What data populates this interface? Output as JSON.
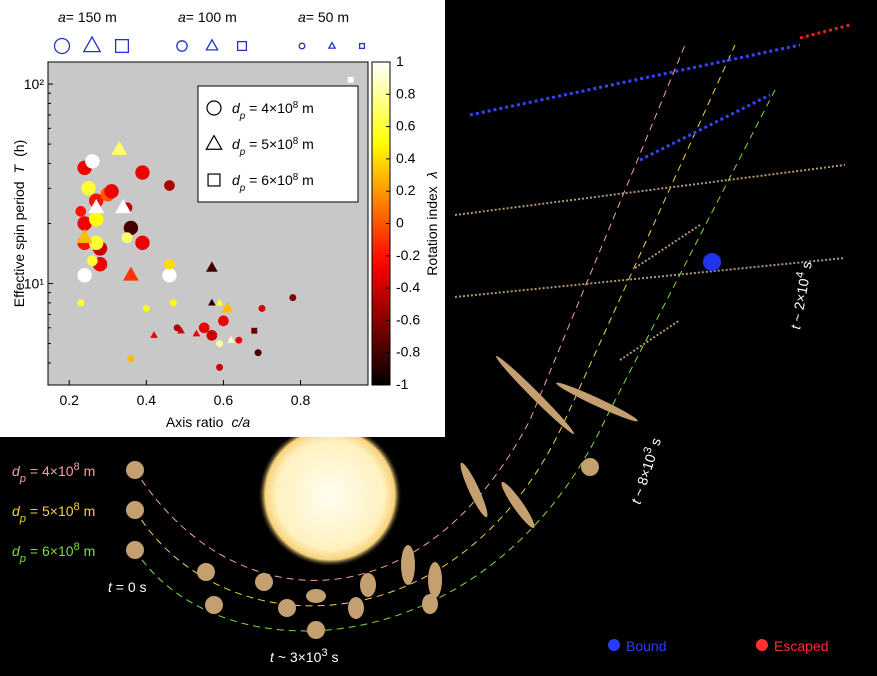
{
  "chart_data": {
    "type": "scatter",
    "x_label": "Axis ratio",
    "x_label_symbol": "c/a",
    "y_label": "Effective spin period",
    "y_label_symbol": "T",
    "y_label_unit": "(h)",
    "xlim": [
      0.145,
      0.975
    ],
    "xticks": [
      0.2,
      0.4,
      0.6,
      0.8
    ],
    "ylim": [
      3.1,
      129
    ],
    "y_log": true,
    "yticks": [
      {
        "value": 10,
        "label": "10¹"
      },
      {
        "value": 100,
        "label": "10²"
      }
    ],
    "grid": false,
    "background": "#c8c8c8",
    "colorbar": {
      "label": "Rotation index",
      "symbol": "λ",
      "lim": [
        -1,
        1
      ],
      "ticks": [
        1,
        0.8,
        0.6,
        0.4,
        0.2,
        0,
        -0.2,
        -0.4,
        -0.6,
        -0.8,
        -1
      ]
    },
    "size_legend": [
      {
        "symbol": "a",
        "text": "= 150 m",
        "value": 150
      },
      {
        "symbol": "a",
        "text": "= 100 m",
        "value": 100
      },
      {
        "symbol": "a",
        "text": "= 50 m",
        "value": 50
      }
    ],
    "size_legend_color": "#2233cc",
    "legend": "upper right",
    "series": [
      {
        "name": {
          "symbol": "d",
          "subscript": "p",
          "text": " = 4×10",
          "superscript": "8",
          "unit": " m"
        },
        "marker": "circle",
        "x": [
          0.24,
          0.26,
          0.25,
          0.27,
          0.3,
          0.31,
          0.24,
          0.27,
          0.24,
          0.28,
          0.27,
          0.28,
          0.24,
          0.39,
          0.36,
          0.39,
          0.46,
          0.35,
          0.46,
          0.23,
          0.26,
          0.35,
          0.57,
          0.55,
          0.46,
          0.6,
          0.23,
          0.47,
          0.59,
          0.69,
          0.7,
          0.78,
          0.4,
          0.36,
          0.59,
          0.64,
          0.48
        ],
        "values": [
          38,
          41,
          30,
          26,
          28,
          29,
          20,
          21,
          16,
          15,
          16,
          12.5,
          11,
          36,
          19,
          16,
          11,
          24,
          31,
          23,
          13,
          17,
          5.5,
          6,
          12.5,
          6.5,
          8,
          8,
          3.8,
          4.5,
          7.5,
          8.5,
          7.5,
          4.2,
          5,
          5.2,
          6
        ],
        "lambda": [
          -0.3,
          1,
          0.6,
          -0.2,
          0,
          -0.3,
          -0.3,
          0.5,
          -0.2,
          -0.4,
          0.6,
          -0.3,
          1,
          -0.3,
          -0.8,
          -0.3,
          1,
          -0.4,
          -0.5,
          -0.2,
          0.6,
          0.7,
          -0.4,
          -0.3,
          0.4,
          -0.3,
          0.6,
          0.5,
          -0.4,
          -0.8,
          -0.4,
          -0.6,
          0.5,
          0.3,
          0.8,
          -0.3,
          -0.5
        ],
        "a": [
          150,
          150,
          150,
          150,
          150,
          150,
          150,
          150,
          150,
          150,
          150,
          150,
          150,
          150,
          150,
          150,
          150,
          100,
          100,
          100,
          100,
          100,
          100,
          100,
          100,
          100,
          50,
          50,
          50,
          50,
          50,
          50,
          50,
          50,
          50,
          50,
          50
        ]
      },
      {
        "name": {
          "symbol": "d",
          "subscript": "p",
          "text": " = 5×10",
          "superscript": "8",
          "unit": " m"
        },
        "marker": "triangle",
        "x": [
          0.33,
          0.27,
          0.34,
          0.24,
          0.36,
          0.57,
          0.61,
          0.57,
          0.49,
          0.59,
          0.53,
          0.42,
          0.62
        ],
        "values": [
          47,
          24,
          24,
          17,
          11,
          12,
          7.5,
          8,
          5.8,
          8,
          5.6,
          5.5,
          5.2
        ],
        "lambda": [
          0.7,
          1,
          1,
          0.3,
          -0.1,
          -0.8,
          0.3,
          -0.9,
          -0.4,
          0.6,
          -0.3,
          -0.3,
          0.9
        ],
        "a": [
          150,
          150,
          150,
          150,
          150,
          100,
          100,
          50,
          50,
          50,
          50,
          50,
          50
        ]
      },
      {
        "name": {
          "symbol": "d",
          "subscript": "p",
          "text": " = 6×10",
          "superscript": "8",
          "unit": " m"
        },
        "marker": "square",
        "x": [
          0.93,
          0.68
        ],
        "values": [
          105,
          5.8
        ],
        "lambda": [
          1,
          -0.7
        ],
        "a": [
          50,
          50
        ]
      }
    ]
  },
  "illustration": {
    "distance_labels": [
      {
        "symbol": "d",
        "subscript": "p",
        "text": " = 4×10",
        "superscript": "8",
        "unit": " m",
        "color": "#f4a0a0"
      },
      {
        "symbol": "d",
        "subscript": "p",
        "text": " = 5×10",
        "superscript": "8",
        "unit": " m",
        "color": "#f5d040"
      },
      {
        "symbol": "d",
        "subscript": "p",
        "text": " = 6×10",
        "superscript": "8",
        "unit": " m",
        "color": "#7ddc3f"
      }
    ],
    "time_labels": [
      {
        "symbol": "t",
        "text": " = 0 s"
      },
      {
        "symbol": "t",
        "text": " ~ 3×10",
        "superscript": "3",
        "unit": " s"
      },
      {
        "symbol": "t",
        "text": " ~ 8×10",
        "superscript": "3",
        "unit": " s"
      },
      {
        "symbol": "t",
        "text": " ~ 2×10",
        "superscript": "4",
        "unit": " s"
      }
    ],
    "legend": [
      {
        "label": "Bound",
        "color": "#2a3cff"
      },
      {
        "label": "Escaped",
        "color": "#ff3030"
      }
    ]
  }
}
